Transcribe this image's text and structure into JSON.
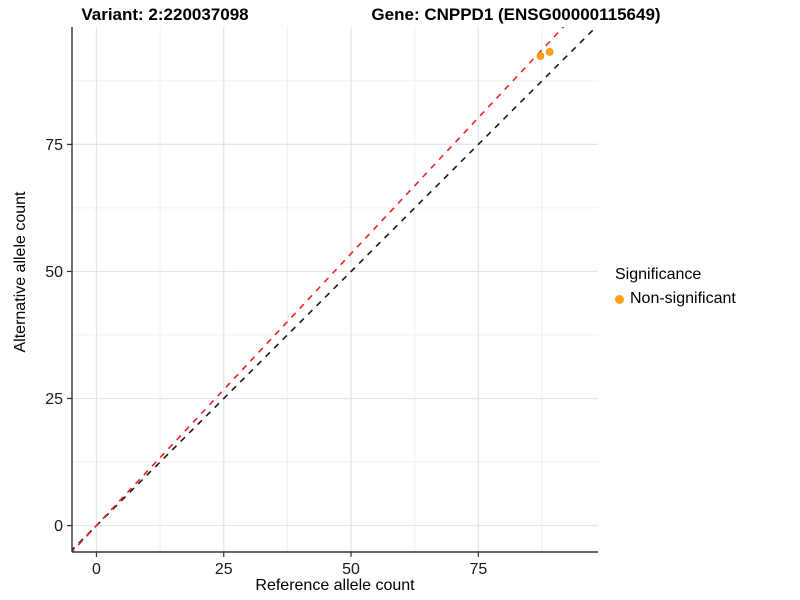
{
  "header": {
    "variant_title": "Variant: 2:220037098",
    "gene_title": "Gene: CNPPD1 (ENSG00000115649)"
  },
  "legend": {
    "title": "Significance",
    "items": [
      {
        "label": "Non-significant",
        "color": "#FBA21A"
      }
    ]
  },
  "chart_data": {
    "type": "scatter",
    "xlabel": "Reference allele count",
    "ylabel": "Alternative allele count",
    "x_ticks": [
      0,
      25,
      50,
      75
    ],
    "y_ticks": [
      0,
      25,
      50,
      75
    ],
    "x_minor_ticks": [
      12.5,
      37.5,
      62.5,
      87.5
    ],
    "y_minor_ticks": [
      12.5,
      37.5,
      62.5,
      87.5
    ],
    "x_range": [
      -4.8,
      98.5
    ],
    "y_range": [
      -5.2,
      98.1
    ],
    "grid": true,
    "legend_position": "right",
    "point_color": "#FBA21A",
    "point_stroke": "#E8930C",
    "points": [
      {
        "x": 87.2,
        "y": 92.4,
        "series": "Non-significant"
      },
      {
        "x": 89.0,
        "y": 93.2,
        "series": "Non-significant"
      }
    ],
    "lines": [
      {
        "name": "identity-line",
        "slope": 1.0,
        "intercept": 0,
        "color": "#1A1A1A",
        "style": "dashed"
      },
      {
        "name": "fit-line",
        "slope": 1.07,
        "intercept": 0,
        "color": "#EE2222",
        "style": "dashed"
      }
    ],
    "colors": {
      "axis": "#333333",
      "tick_label": "#1A1A1A",
      "grid_major": "#E5E5E5",
      "grid_minor": "#F1F1F1"
    }
  }
}
